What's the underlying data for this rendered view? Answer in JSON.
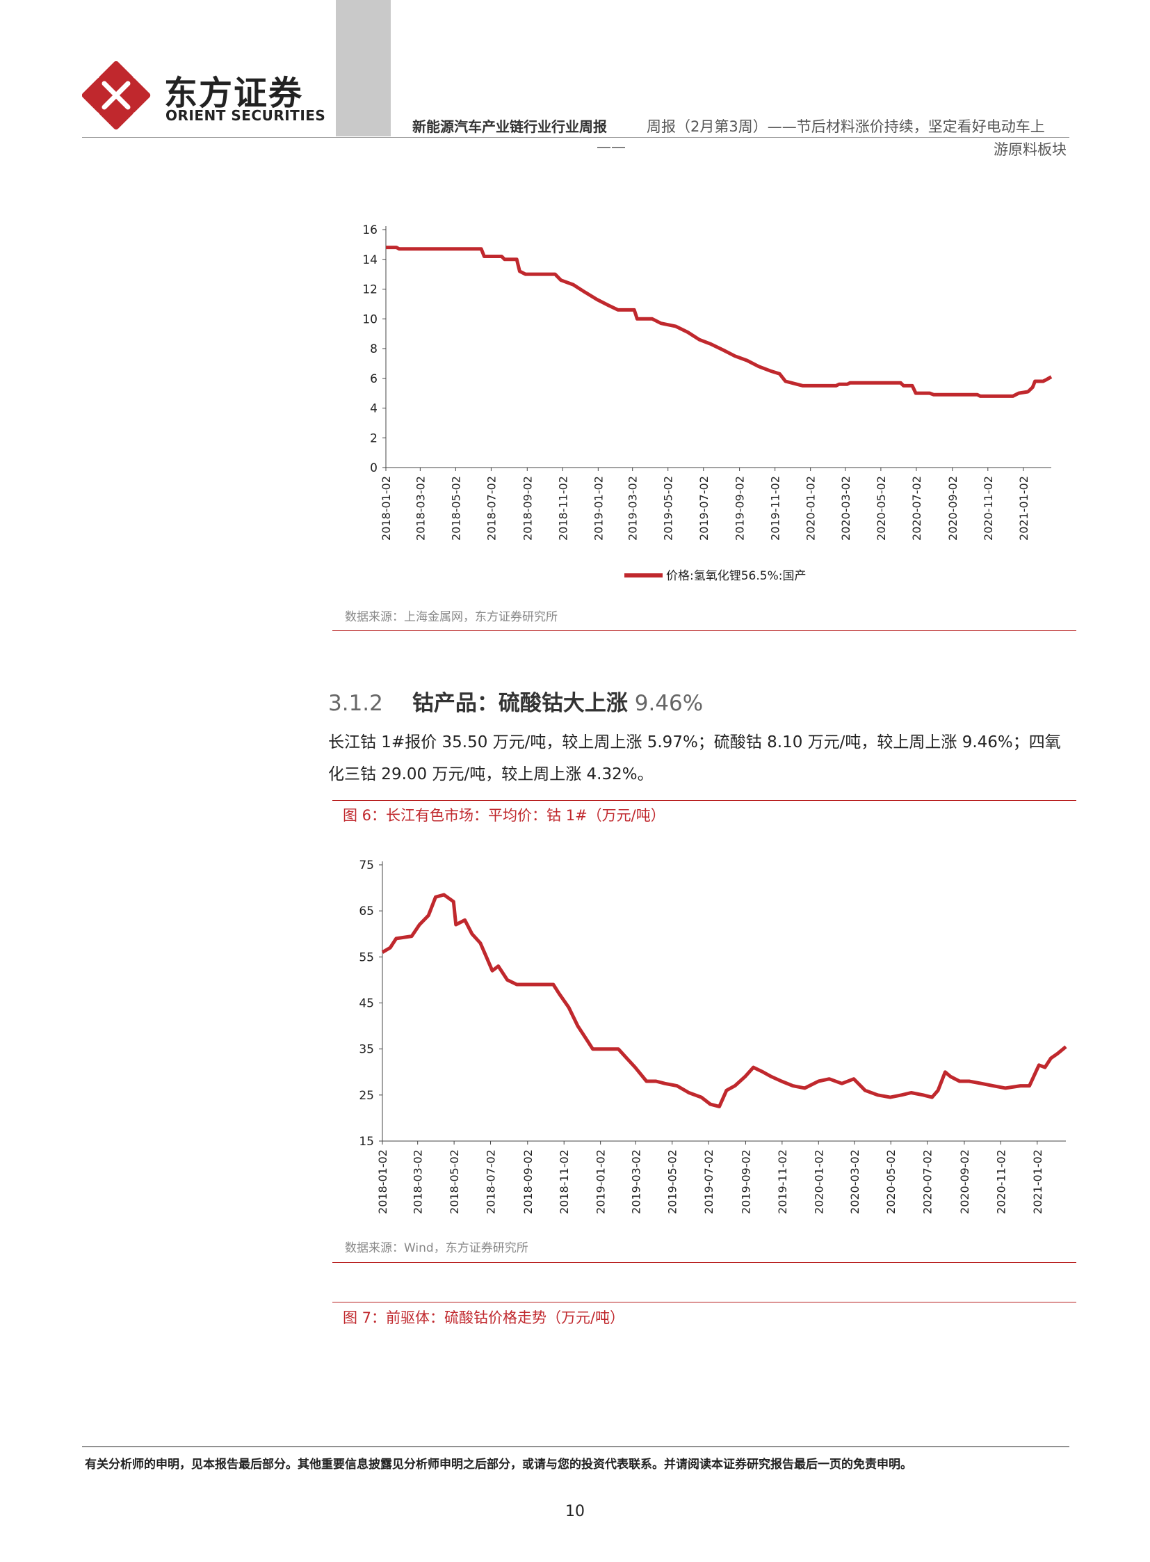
{
  "brand": {
    "name_cn": "东方证券",
    "name_en": "ORIENT SECURITIES",
    "accent": "#c0282d"
  },
  "header": {
    "report_series": "新能源汽车产业链行业行业周报",
    "report_title_line1": "周报（2月第3周）——节后材料涨价持续，坚定看好电动车上",
    "report_title_line2": "游原料板块",
    "dash": "——"
  },
  "chart1": {
    "legend": "价格:氢氧化锂56.5%:国产",
    "source": "数据来源：上海金属网，东方证券研究所"
  },
  "section": {
    "number": "3.1.2",
    "title": "钴产品：硫酸钴大上涨",
    "pct": "9.46%",
    "paragraph": "长江钴 1#报价 35.50 万元/吨，较上周上涨 5.97%；硫酸钴 8.10 万元/吨，较上周上涨 9.46%；四氧化三钴 29.00 万元/吨，较上周上涨 4.32%。"
  },
  "figure6": {
    "caption": "图 6：长江有色市场：平均价：钴 1#（万元/吨）",
    "source": "数据来源：Wind，东方证券研究所"
  },
  "figure7": {
    "caption": "图 7：前驱体：硫酸钴价格走势（万元/吨）"
  },
  "footer": {
    "note": "有关分析师的申明，见本报告最后部分。其他重要信息披露见分析师申明之后部分，或请与您的投资代表联系。并请阅读本证券研究报告最后一页的免责申明。",
    "page": "10"
  },
  "chart_data": [
    {
      "type": "line",
      "title": "",
      "xlabel": "",
      "ylabel": "",
      "ylim": [
        0,
        16
      ],
      "yticks": [
        0,
        2,
        4,
        6,
        8,
        10,
        12,
        14,
        16
      ],
      "xticks": [
        "2018-01-02",
        "2018-03-02",
        "2018-05-02",
        "2018-07-02",
        "2018-09-02",
        "2018-11-02",
        "2019-01-02",
        "2019-03-02",
        "2019-05-02",
        "2019-07-02",
        "2019-09-02",
        "2019-11-02",
        "2020-01-02",
        "2020-03-02",
        "2020-05-02",
        "2020-07-02",
        "2020-09-02",
        "2020-11-02",
        "2021-01-02"
      ],
      "xlim": [
        "2018-01-02",
        "2021-02-19"
      ],
      "color": "#c0282d",
      "series": [
        {
          "name": "价格:氢氧化锂56.5%:国产",
          "points": [
            [
              "2018-01-02",
              14.8
            ],
            [
              "2018-01-20",
              14.8
            ],
            [
              "2018-01-25",
              14.7
            ],
            [
              "2018-06-15",
              14.7
            ],
            [
              "2018-06-20",
              14.2
            ],
            [
              "2018-07-20",
              14.2
            ],
            [
              "2018-07-25",
              14.0
            ],
            [
              "2018-08-15",
              14.0
            ],
            [
              "2018-08-20",
              13.2
            ],
            [
              "2018-08-30",
              13.0
            ],
            [
              "2018-10-20",
              13.0
            ],
            [
              "2018-10-30",
              12.6
            ],
            [
              "2018-11-20",
              12.3
            ],
            [
              "2018-12-10",
              11.8
            ],
            [
              "2018-12-31",
              11.3
            ],
            [
              "2019-01-20",
              10.9
            ],
            [
              "2019-02-05",
              10.6
            ],
            [
              "2019-03-05",
              10.6
            ],
            [
              "2019-03-10",
              10.0
            ],
            [
              "2019-04-05",
              10.0
            ],
            [
              "2019-04-20",
              9.7
            ],
            [
              "2019-05-15",
              9.5
            ],
            [
              "2019-06-05",
              9.1
            ],
            [
              "2019-06-25",
              8.6
            ],
            [
              "2019-07-15",
              8.3
            ],
            [
              "2019-08-05",
              7.9
            ],
            [
              "2019-08-25",
              7.5
            ],
            [
              "2019-09-15",
              7.2
            ],
            [
              "2019-10-05",
              6.8
            ],
            [
              "2019-10-25",
              6.5
            ],
            [
              "2019-11-10",
              6.3
            ],
            [
              "2019-11-20",
              5.8
            ],
            [
              "2019-12-10",
              5.6
            ],
            [
              "2019-12-20",
              5.5
            ],
            [
              "2020-02-15",
              5.5
            ],
            [
              "2020-02-20",
              5.6
            ],
            [
              "2020-03-05",
              5.6
            ],
            [
              "2020-03-10",
              5.7
            ],
            [
              "2020-06-05",
              5.7
            ],
            [
              "2020-06-10",
              5.5
            ],
            [
              "2020-06-25",
              5.5
            ],
            [
              "2020-07-01",
              5.0
            ],
            [
              "2020-07-25",
              5.0
            ],
            [
              "2020-08-01",
              4.9
            ],
            [
              "2020-10-15",
              4.9
            ],
            [
              "2020-10-20",
              4.8
            ],
            [
              "2020-12-15",
              4.8
            ],
            [
              "2020-12-25",
              5.0
            ],
            [
              "2021-01-10",
              5.1
            ],
            [
              "2021-01-18",
              5.4
            ],
            [
              "2021-01-22",
              5.8
            ],
            [
              "2021-02-05",
              5.8
            ],
            [
              "2021-02-10",
              5.9
            ],
            [
              "2021-02-19",
              6.1
            ]
          ]
        }
      ]
    },
    {
      "type": "line",
      "title": "",
      "xlabel": "",
      "ylabel": "",
      "ylim": [
        15,
        75
      ],
      "yticks": [
        15,
        25,
        35,
        45,
        55,
        65,
        75
      ],
      "xticks": [
        "2018-01-02",
        "2018-03-02",
        "2018-05-02",
        "2018-07-02",
        "2018-09-02",
        "2018-11-02",
        "2019-01-02",
        "2019-03-02",
        "2019-05-02",
        "2019-07-02",
        "2019-09-02",
        "2019-11-02",
        "2020-01-02",
        "2020-03-02",
        "2020-05-02",
        "2020-07-02",
        "2020-09-02",
        "2020-11-02",
        "2021-01-02"
      ],
      "xlim": [
        "2018-01-02",
        "2021-02-19"
      ],
      "color": "#c0282d",
      "series": [
        {
          "name": "",
          "points": [
            [
              "2018-01-02",
              56
            ],
            [
              "2018-01-15",
              57
            ],
            [
              "2018-01-25",
              59
            ],
            [
              "2018-02-20",
              59.5
            ],
            [
              "2018-03-05",
              62
            ],
            [
              "2018-03-20",
              64
            ],
            [
              "2018-04-01",
              68
            ],
            [
              "2018-04-15",
              68.5
            ],
            [
              "2018-05-01",
              67
            ],
            [
              "2018-05-05",
              62
            ],
            [
              "2018-05-20",
              63
            ],
            [
              "2018-06-01",
              60
            ],
            [
              "2018-06-15",
              58
            ],
            [
              "2018-06-25",
              55
            ],
            [
              "2018-07-05",
              52
            ],
            [
              "2018-07-15",
              53
            ],
            [
              "2018-07-30",
              50
            ],
            [
              "2018-08-15",
              49
            ],
            [
              "2018-09-01",
              49
            ],
            [
              "2018-10-15",
              49
            ],
            [
              "2018-10-25",
              47
            ],
            [
              "2018-11-10",
              44
            ],
            [
              "2018-11-25",
              40
            ],
            [
              "2018-12-10",
              37
            ],
            [
              "2018-12-20",
              35
            ],
            [
              "2019-02-01",
              35
            ],
            [
              "2019-02-15",
              33
            ],
            [
              "2019-03-01",
              31
            ],
            [
              "2019-03-20",
              28
            ],
            [
              "2019-04-05",
              28
            ],
            [
              "2019-04-20",
              27.5
            ],
            [
              "2019-05-10",
              27
            ],
            [
              "2019-05-30",
              25.5
            ],
            [
              "2019-06-20",
              24.5
            ],
            [
              "2019-07-05",
              23
            ],
            [
              "2019-07-20",
              22.5
            ],
            [
              "2019-08-01",
              26
            ],
            [
              "2019-08-15",
              27
            ],
            [
              "2019-09-01",
              29
            ],
            [
              "2019-09-15",
              31
            ],
            [
              "2019-10-01",
              30
            ],
            [
              "2019-10-15",
              29
            ],
            [
              "2019-11-01",
              28
            ],
            [
              "2019-11-20",
              27
            ],
            [
              "2019-12-10",
              26.5
            ],
            [
              "2020-01-02",
              28
            ],
            [
              "2020-01-20",
              28.5
            ],
            [
              "2020-02-10",
              27.5
            ],
            [
              "2020-03-01",
              28.5
            ],
            [
              "2020-03-20",
              26
            ],
            [
              "2020-04-10",
              25
            ],
            [
              "2020-05-01",
              24.5
            ],
            [
              "2020-05-20",
              25
            ],
            [
              "2020-06-05",
              25.5
            ],
            [
              "2020-06-25",
              25
            ],
            [
              "2020-07-10",
              24.5
            ],
            [
              "2020-07-20",
              26
            ],
            [
              "2020-08-01",
              30
            ],
            [
              "2020-08-10",
              29
            ],
            [
              "2020-08-25",
              28
            ],
            [
              "2020-09-10",
              28
            ],
            [
              "2020-10-01",
              27.5
            ],
            [
              "2020-10-20",
              27
            ],
            [
              "2020-11-10",
              26.5
            ],
            [
              "2020-12-05",
              27
            ],
            [
              "2020-12-20",
              27
            ],
            [
              "2021-01-05",
              31.5
            ],
            [
              "2021-01-15",
              31
            ],
            [
              "2021-01-25",
              33
            ],
            [
              "2021-02-05",
              34
            ],
            [
              "2021-02-19",
              35.5
            ]
          ]
        }
      ]
    }
  ]
}
